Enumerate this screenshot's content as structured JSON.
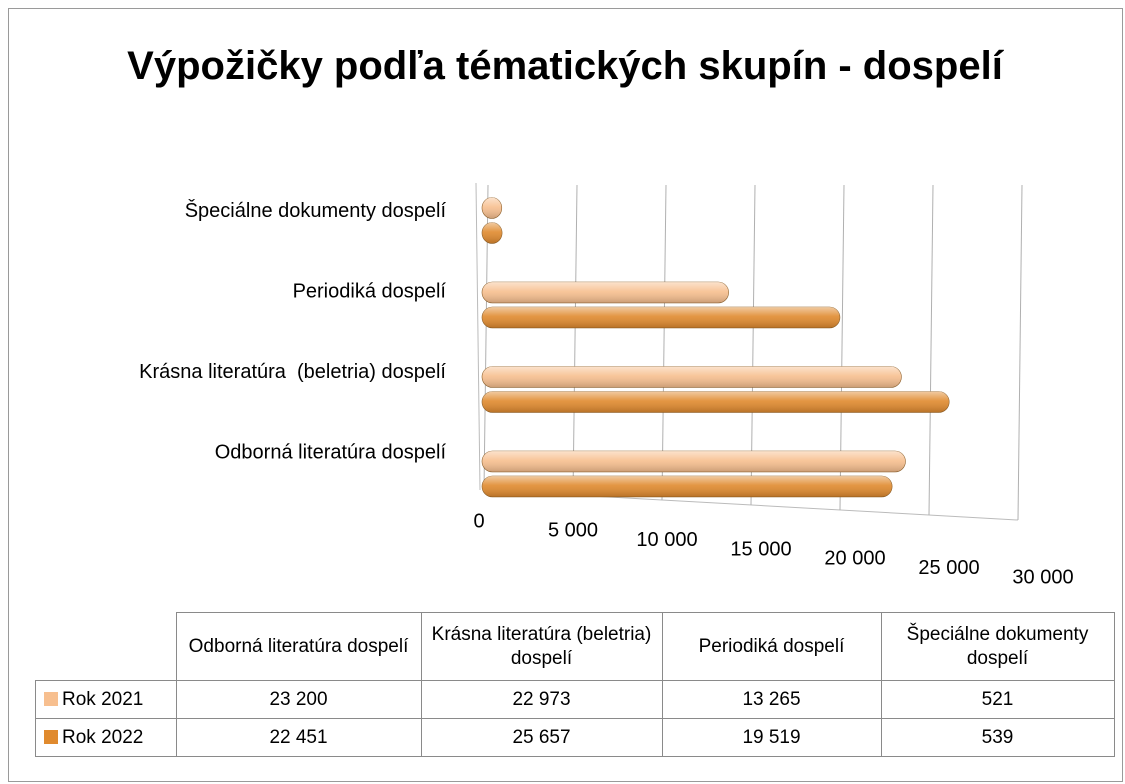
{
  "chart_data": {
    "type": "bar",
    "orientation": "horizontal",
    "title": "Výpožičky podľa tématických skupín - dospelí",
    "categories": [
      "Odborná literatúra dospelí",
      "Krásna literatúra  (beletria) dospelí",
      "Periodiká dospelí",
      "Špeciálne dokumenty dospelí"
    ],
    "series": [
      {
        "name": "Rok 2021",
        "color": "#f7bf8f",
        "values": [
          23200,
          22973,
          13265,
          521
        ],
        "value_labels": [
          "23 200",
          "22 973",
          "13 265",
          "521"
        ]
      },
      {
        "name": "Rok 2022",
        "color": "#e08a2e",
        "values": [
          22451,
          25657,
          19519,
          539
        ],
        "value_labels": [
          "22 451",
          "25 657",
          "19 519",
          "539"
        ]
      }
    ],
    "xlim": [
      0,
      30000
    ],
    "xticks": [
      0,
      {
        "value": 5000,
        "label": "5 000"
      },
      {
        "value": 10000,
        "label": "10 000"
      },
      {
        "value": 15000,
        "label": "15 000"
      },
      {
        "value": 20000,
        "label": "20 000"
      },
      {
        "value": 25000,
        "label": "25 000"
      },
      {
        "value": 30000,
        "label": "30 000"
      }
    ],
    "grid": true
  }
}
